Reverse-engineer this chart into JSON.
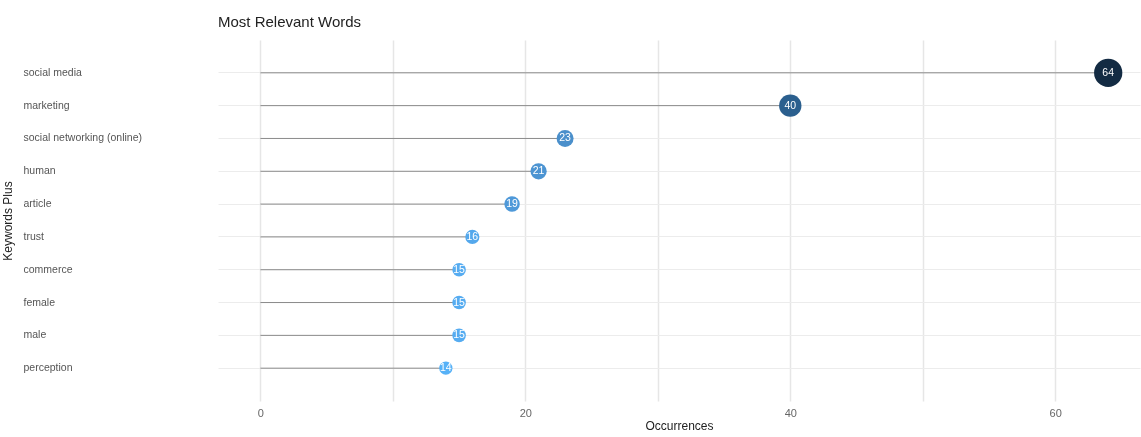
{
  "chart_data": {
    "type": "lollipop",
    "title": "Most Relevant Words",
    "xlabel": "Occurrences",
    "ylabel": "Keywords Plus",
    "orientation": "horizontal",
    "categories": [
      "social media",
      "marketing",
      "social networking (online)",
      "human",
      "article",
      "trust",
      "commerce",
      "female",
      "male",
      "perception"
    ],
    "values": [
      64,
      40,
      23,
      21,
      19,
      16,
      15,
      15,
      15,
      14
    ],
    "sizes": [
      1,
      0.625,
      0.36,
      0.33,
      0.3,
      0.25,
      0.23,
      0.23,
      0.23,
      0.22
    ],
    "colors": [
      "#132b43",
      "#2b5f8e",
      "#4a8fcb",
      "#4c94d2",
      "#4f99d9",
      "#54a8ec",
      "#56acf1",
      "#56acf1",
      "#56acf1",
      "#56b1f7"
    ],
    "xlim": [
      -3.2,
      66.4
    ],
    "xticks": [
      0,
      {
        "value": 10,
        "label": null
      },
      20,
      {
        "value": 30,
        "label": null
      },
      40,
      {
        "value": 50,
        "label": null
      },
      60
    ],
    "grid": true,
    "data_labels": true
  }
}
